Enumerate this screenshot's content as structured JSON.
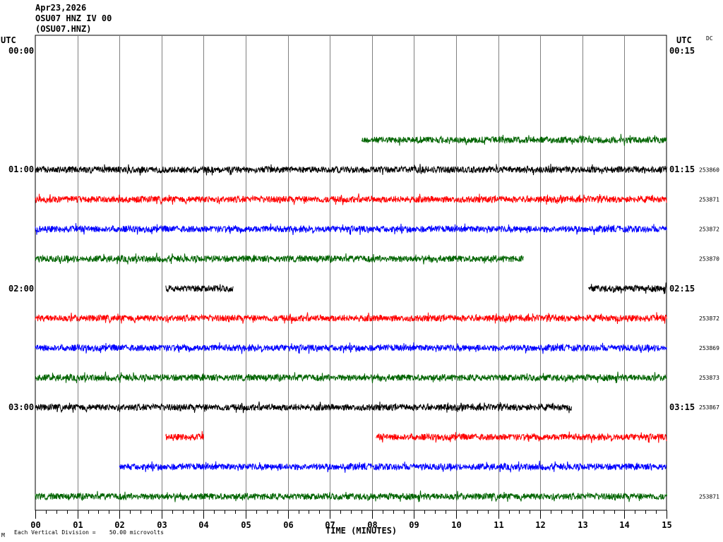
{
  "header": {
    "date": "Apr23,2026",
    "station": "OSU07 HNZ IV 00",
    "code": "(OSU07.HNZ)"
  },
  "left_utc_label": "UTC",
  "right_utc_label": "UTC",
  "dc_label": "DC",
  "footer": {
    "scale_text": "Each Vertical Division =    50.00 microvolts",
    "corner_mark": "M"
  },
  "colors": {
    "black": "#000000",
    "red": "#ff0000",
    "blue": "#0000ff",
    "green": "#006400",
    "grid": "#808080"
  },
  "chart_data": {
    "type": "line",
    "title": "OSU07 HNZ IV 00",
    "xlabel": "TIME (MINUTES)",
    "xlim": [
      0,
      15
    ],
    "x_ticks": [
      "00",
      "01",
      "02",
      "03",
      "04",
      "05",
      "06",
      "07",
      "08",
      "09",
      "10",
      "11",
      "12",
      "13",
      "14",
      "15"
    ],
    "left_time_labels": [
      "00:00",
      "01:00",
      "02:00",
      "03:00"
    ],
    "right_time_labels": [
      "00:15",
      "01:15",
      "02:15",
      "03:15"
    ],
    "amplitude_units": "microvolts",
    "vertical_division": 50.0,
    "traces": [
      {
        "row": 0,
        "color": "black",
        "segments": []
      },
      {
        "row": 1,
        "color": "red",
        "segments": []
      },
      {
        "row": 2,
        "color": "blue",
        "segments": []
      },
      {
        "row": 3,
        "color": "green",
        "segments": [
          [
            7.75,
            15.0
          ]
        ]
      },
      {
        "row": 4,
        "color": "black",
        "segments": [
          [
            0.0,
            15.0
          ]
        ],
        "count": "253860"
      },
      {
        "row": 5,
        "color": "red",
        "segments": [
          [
            0.0,
            15.0
          ]
        ],
        "count": "253871"
      },
      {
        "row": 6,
        "color": "blue",
        "segments": [
          [
            0.0,
            15.0
          ]
        ],
        "count": "253872"
      },
      {
        "row": 7,
        "color": "green",
        "segments": [
          [
            0.0,
            11.6
          ]
        ],
        "count": "253870"
      },
      {
        "row": 8,
        "color": "black",
        "segments": [
          [
            3.1,
            4.7
          ],
          [
            13.15,
            15.0
          ]
        ]
      },
      {
        "row": 9,
        "color": "red",
        "segments": [
          [
            0.0,
            15.0
          ]
        ],
        "count": "253872"
      },
      {
        "row": 10,
        "color": "blue",
        "segments": [
          [
            0.0,
            15.0
          ]
        ],
        "count": "253869"
      },
      {
        "row": 11,
        "color": "green",
        "segments": [
          [
            0.0,
            15.0
          ]
        ],
        "count": "253873"
      },
      {
        "row": 12,
        "color": "black",
        "segments": [
          [
            0.0,
            12.75
          ]
        ],
        "count": "253867"
      },
      {
        "row": 13,
        "color": "red",
        "segments": [
          [
            3.1,
            4.0
          ],
          [
            8.1,
            15.0
          ]
        ]
      },
      {
        "row": 14,
        "color": "blue",
        "segments": [
          [
            2.0,
            15.0
          ]
        ]
      },
      {
        "row": 15,
        "color": "green",
        "segments": [
          [
            0.0,
            15.0
          ]
        ],
        "count": "253871"
      }
    ]
  }
}
